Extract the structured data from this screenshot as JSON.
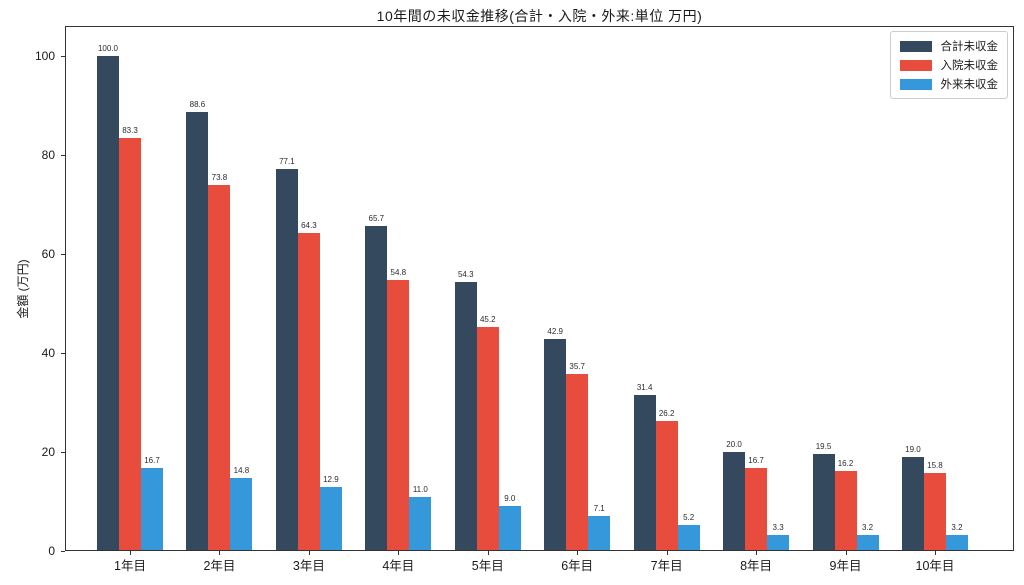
{
  "chart_data": {
    "type": "bar",
    "title": "10年間の未収金推移(合計・入院・外来:単位 万円)",
    "xlabel": "",
    "ylabel": "金額 (万円)",
    "categories": [
      "1年目",
      "2年目",
      "3年目",
      "4年目",
      "5年目",
      "6年目",
      "7年目",
      "8年目",
      "9年目",
      "10年目"
    ],
    "series": [
      {
        "name": "合計未収金",
        "color": "#35495e",
        "values": [
          100.0,
          88.6,
          77.1,
          65.7,
          54.3,
          42.9,
          31.4,
          20.0,
          19.5,
          19.0
        ]
      },
      {
        "name": "入院未収金",
        "color": "#e74c3c",
        "values": [
          83.3,
          73.8,
          64.3,
          54.8,
          45.2,
          35.7,
          26.2,
          16.7,
          16.2,
          15.8
        ]
      },
      {
        "name": "外来未収金",
        "color": "#3498db",
        "values": [
          16.7,
          14.8,
          12.9,
          11.0,
          9.0,
          7.1,
          5.2,
          3.3,
          3.2,
          3.2
        ]
      }
    ],
    "yticks": [
      0,
      20,
      40,
      60,
      80,
      100
    ],
    "ylim": [
      0,
      106
    ],
    "grid": false,
    "legend_position": "upper right",
    "value_label_decimals": 1,
    "bar_value_labels_shown": true
  }
}
